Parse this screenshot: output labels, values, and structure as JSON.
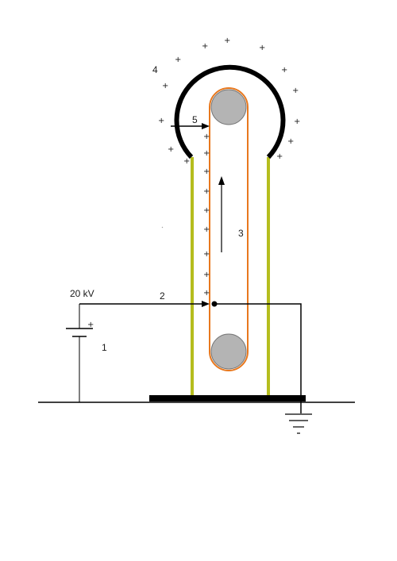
{
  "labels": {
    "one": "1",
    "two": "2",
    "three": "3",
    "four": "4",
    "five": "5",
    "voltage": "20 kV",
    "battery_plus": "+"
  },
  "charge_symbol": "+",
  "colors": {
    "dome": "#000000",
    "belt": "#e8781e",
    "column": "#b5bd1e",
    "pulley": "#b4b4b4",
    "wire": "#000000"
  }
}
